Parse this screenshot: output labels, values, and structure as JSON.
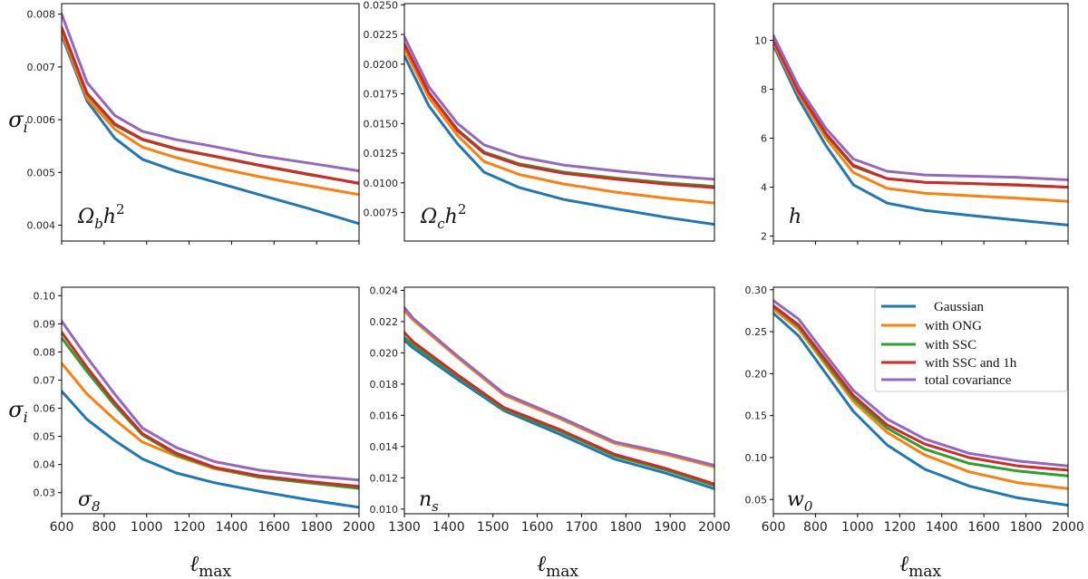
{
  "figure": {
    "ylabel": "σ",
    "ylabel_sub": "i",
    "xlabel": "ℓ",
    "xlabel_sub": "max"
  },
  "colors": {
    "Gaussian": "#1f77b4",
    "with ONG": "#ff7f0e",
    "with SSC": "#2ca02c",
    "with SSC and 1h": "#d62728",
    "total covariance": "#9467bd"
  },
  "legend": {
    "entries": [
      "Gaussian",
      "with ONG",
      "with SSC",
      "with SSC and 1h",
      "total covariance"
    ],
    "location": "upper-right of bottom-right panel"
  },
  "chart_data": [
    {
      "type": "line",
      "panel": "top-left",
      "param_label": "Ω",
      "param_sub": "b",
      "param_tail": "h",
      "param_sup": "2",
      "xlim": [
        600,
        2000
      ],
      "ylim": [
        0.0037,
        0.0082
      ],
      "xticks": [],
      "xtick_minor": [
        600,
        800,
        1000,
        1200,
        1400,
        1600,
        1800,
        2000
      ],
      "yticks": [
        0.004,
        0.005,
        0.006,
        0.007,
        0.008
      ],
      "ytick_labels": [
        "0.004",
        "0.005",
        "0.006",
        "0.007",
        "0.008"
      ],
      "show_ylabel": true,
      "show_xlabel": false,
      "x": [
        600,
        720,
        850,
        980,
        1140,
        1320,
        1530,
        1760,
        2000
      ],
      "series": [
        {
          "name": "Gaussian",
          "values": [
            0.0076,
            0.00635,
            0.00565,
            0.00525,
            0.00502,
            0.00482,
            0.00458,
            0.00432,
            0.00403
          ]
        },
        {
          "name": "with ONG",
          "values": [
            0.00765,
            0.0064,
            0.00582,
            0.00548,
            0.00528,
            0.0051,
            0.00492,
            0.00475,
            0.00458
          ]
        },
        {
          "name": "with SSC",
          "values": [
            0.00772,
            0.00648,
            0.0059,
            0.00562,
            0.00544,
            0.0053,
            0.00513,
            0.00496,
            0.0048
          ]
        },
        {
          "name": "with SSC and 1h",
          "values": [
            0.00775,
            0.0065,
            0.00592,
            0.00563,
            0.00545,
            0.00531,
            0.00514,
            0.00497,
            0.00479
          ]
        },
        {
          "name": "total covariance",
          "values": [
            0.008,
            0.0067,
            0.00608,
            0.00578,
            0.00562,
            0.00549,
            0.00532,
            0.00518,
            0.00503
          ]
        }
      ]
    },
    {
      "type": "line",
      "panel": "top-middle",
      "param_label": "Ω",
      "param_sub": "c",
      "param_tail": "h",
      "param_sup": "2",
      "xlim": [
        1300,
        2000
      ],
      "ylim": [
        0.0051,
        0.0251
      ],
      "xticks": [],
      "xtick_minor": [],
      "yticks": [
        0.0075,
        0.01,
        0.0125,
        0.015,
        0.0175,
        0.02,
        0.0225,
        0.025
      ],
      "ytick_labels": [
        "0.0075",
        "0.0100",
        "0.0125",
        "0.0150",
        "0.0175",
        "0.0200",
        "0.0225",
        "0.0250"
      ],
      "show_ylabel": false,
      "show_xlabel": false,
      "x": [
        1300,
        1355,
        1420,
        1480,
        1560,
        1660,
        1780,
        1890,
        2000
      ],
      "series": [
        {
          "name": "Gaussian",
          "values": [
            0.0207,
            0.0165,
            0.0133,
            0.0109,
            0.0096,
            0.0086,
            0.0078,
            0.0071,
            0.0065
          ]
        },
        {
          "name": "with ONG",
          "values": [
            0.0213,
            0.0172,
            0.014,
            0.0118,
            0.0107,
            0.0099,
            0.0092,
            0.0087,
            0.0083
          ]
        },
        {
          "name": "with SSC",
          "values": [
            0.0217,
            0.0176,
            0.0145,
            0.0126,
            0.0116,
            0.0109,
            0.0104,
            0.01,
            0.0097
          ]
        },
        {
          "name": "with SSC and 1h",
          "values": [
            0.0217,
            0.0176,
            0.0144,
            0.0125,
            0.0115,
            0.0108,
            0.0103,
            0.0099,
            0.0096
          ]
        },
        {
          "name": "total covariance",
          "values": [
            0.0223,
            0.0181,
            0.015,
            0.0132,
            0.0122,
            0.0115,
            0.011,
            0.0106,
            0.0103
          ]
        }
      ]
    },
    {
      "type": "line",
      "panel": "top-right",
      "param_label": "h",
      "param_sub": "",
      "param_tail": "",
      "param_sup": "",
      "xlim": [
        600,
        2000
      ],
      "ylim": [
        1.8,
        11.5
      ],
      "xticks": [],
      "xtick_minor": [
        600,
        800,
        1000,
        1200,
        1400,
        1600,
        1800,
        2000
      ],
      "yticks": [
        2,
        4,
        6,
        8,
        10
      ],
      "ytick_labels": [
        "2",
        "4",
        "6",
        "8",
        "10"
      ],
      "show_ylabel": false,
      "show_xlabel": false,
      "x": [
        600,
        720,
        850,
        980,
        1140,
        1320,
        1530,
        1760,
        2000
      ],
      "series": [
        {
          "name": "Gaussian",
          "values": [
            9.8,
            7.6,
            5.7,
            4.1,
            3.35,
            3.05,
            2.85,
            2.65,
            2.45
          ]
        },
        {
          "name": "with ONG",
          "values": [
            9.9,
            7.8,
            6.0,
            4.6,
            3.95,
            3.75,
            3.65,
            3.55,
            3.42
          ]
        },
        {
          "name": "with SSC",
          "values": [
            10.0,
            7.9,
            6.15,
            4.85,
            4.35,
            4.2,
            4.15,
            4.1,
            4.0
          ]
        },
        {
          "name": "with SSC and 1h",
          "values": [
            10.0,
            7.9,
            6.2,
            4.9,
            4.35,
            4.2,
            4.15,
            4.08,
            4.0
          ]
        },
        {
          "name": "total covariance",
          "values": [
            10.2,
            8.1,
            6.4,
            5.15,
            4.65,
            4.5,
            4.45,
            4.4,
            4.3
          ]
        }
      ]
    },
    {
      "type": "line",
      "panel": "bottom-left",
      "param_label": "σ",
      "param_sub": "8",
      "param_tail": "",
      "param_sup": "",
      "xlim": [
        600,
        2000
      ],
      "ylim": [
        0.0225,
        0.103
      ],
      "xticks": [
        600,
        800,
        1000,
        1200,
        1400,
        1600,
        1800,
        2000
      ],
      "xtick_labels": [
        "600",
        "800",
        "1000",
        "1200",
        "1400",
        "1600",
        "1800",
        "2000"
      ],
      "xtick_minor": [],
      "yticks": [
        0.03,
        0.04,
        0.05,
        0.06,
        0.07,
        0.08,
        0.09,
        0.1
      ],
      "ytick_labels": [
        "0.03",
        "0.04",
        "0.05",
        "0.06",
        "0.07",
        "0.08",
        "0.09",
        "0.10"
      ],
      "show_ylabel": true,
      "show_xlabel": true,
      "x": [
        600,
        720,
        850,
        980,
        1140,
        1320,
        1530,
        1760,
        2000
      ],
      "series": [
        {
          "name": "Gaussian",
          "values": [
            0.066,
            0.056,
            0.0485,
            0.042,
            0.037,
            0.0335,
            0.0305,
            0.0275,
            0.0248
          ]
        },
        {
          "name": "with ONG",
          "values": [
            0.076,
            0.065,
            0.056,
            0.048,
            0.043,
            0.0385,
            0.0355,
            0.0335,
            0.0318
          ]
        },
        {
          "name": "with SSC",
          "values": [
            0.085,
            0.073,
            0.061,
            0.0505,
            0.0435,
            0.0388,
            0.0355,
            0.0335,
            0.0315
          ]
        },
        {
          "name": "with SSC and 1h",
          "values": [
            0.087,
            0.0745,
            0.062,
            0.051,
            0.044,
            0.039,
            0.036,
            0.034,
            0.0322
          ]
        },
        {
          "name": "total covariance",
          "values": [
            0.091,
            0.078,
            0.065,
            0.053,
            0.046,
            0.041,
            0.038,
            0.036,
            0.0345
          ]
        }
      ]
    },
    {
      "type": "line",
      "panel": "bottom-middle",
      "param_label": "n",
      "param_sub": "s",
      "param_tail": "",
      "param_sup": "",
      "xlim": [
        1300,
        2000
      ],
      "ylim": [
        0.0097,
        0.0242
      ],
      "xticks": [
        1300,
        1400,
        1500,
        1600,
        1700,
        1800,
        1900,
        2000
      ],
      "xtick_labels": [
        "1300",
        "1400",
        "1500",
        "1600",
        "1700",
        "1800",
        "1900",
        "2000"
      ],
      "xtick_minor": [],
      "yticks": [
        0.01,
        0.012,
        0.014,
        0.016,
        0.018,
        0.02,
        0.022,
        0.024
      ],
      "ytick_labels": [
        "0.010",
        "0.012",
        "0.014",
        "0.016",
        "0.018",
        "0.020",
        "0.022",
        "0.024"
      ],
      "show_ylabel": false,
      "show_xlabel": true,
      "x": [
        1300,
        1320,
        1420,
        1525,
        1650,
        1775,
        1890,
        2000
      ],
      "series": [
        {
          "name": "Gaussian",
          "values": [
            0.0208,
            0.0203,
            0.0183,
            0.0163,
            0.0148,
            0.0132,
            0.0123,
            0.0113
          ]
        },
        {
          "name": "with ONG",
          "values": [
            0.0227,
            0.0221,
            0.0197,
            0.0173,
            0.0158,
            0.0142,
            0.0135,
            0.0127
          ]
        },
        {
          "name": "with SSC",
          "values": [
            0.021,
            0.0205,
            0.0185,
            0.0164,
            0.015,
            0.0134,
            0.0125,
            0.0115
          ]
        },
        {
          "name": "with SSC and 1h",
          "values": [
            0.0213,
            0.0207,
            0.0186,
            0.0165,
            0.0151,
            0.0135,
            0.0126,
            0.0116
          ]
        },
        {
          "name": "total covariance",
          "values": [
            0.0229,
            0.0222,
            0.0198,
            0.0174,
            0.0159,
            0.0143,
            0.0136,
            0.0128
          ]
        }
      ]
    },
    {
      "type": "line",
      "panel": "bottom-right",
      "param_label": "w",
      "param_sub": "0",
      "param_tail": "",
      "param_sup": "",
      "xlim": [
        600,
        2000
      ],
      "ylim": [
        0.033,
        0.303
      ],
      "xticks": [
        600,
        800,
        1000,
        1200,
        1400,
        1600,
        1800,
        2000
      ],
      "xtick_labels": [
        "600",
        "800",
        "1000",
        "1200",
        "1400",
        "1600",
        "1800",
        "2000"
      ],
      "xtick_minor": [],
      "yticks": [
        0.05,
        0.1,
        0.15,
        0.2,
        0.25,
        0.3
      ],
      "ytick_labels": [
        "0.05",
        "0.10",
        "0.15",
        "0.20",
        "0.25",
        "0.30"
      ],
      "show_ylabel": false,
      "show_xlabel": true,
      "x": [
        600,
        720,
        850,
        980,
        1140,
        1320,
        1530,
        1760,
        2000
      ],
      "series": [
        {
          "name": "Gaussian",
          "values": [
            0.272,
            0.245,
            0.2,
            0.155,
            0.115,
            0.086,
            0.066,
            0.052,
            0.043
          ]
        },
        {
          "name": "with ONG",
          "values": [
            0.277,
            0.253,
            0.21,
            0.167,
            0.13,
            0.103,
            0.083,
            0.07,
            0.063
          ]
        },
        {
          "name": "with SSC",
          "values": [
            0.28,
            0.256,
            0.213,
            0.171,
            0.135,
            0.11,
            0.093,
            0.084,
            0.078
          ]
        },
        {
          "name": "with SSC and 1h",
          "values": [
            0.281,
            0.258,
            0.216,
            0.174,
            0.139,
            0.116,
            0.1,
            0.09,
            0.085
          ]
        },
        {
          "name": "total covariance",
          "values": [
            0.287,
            0.265,
            0.222,
            0.18,
            0.146,
            0.122,
            0.105,
            0.096,
            0.09
          ]
        }
      ]
    }
  ]
}
